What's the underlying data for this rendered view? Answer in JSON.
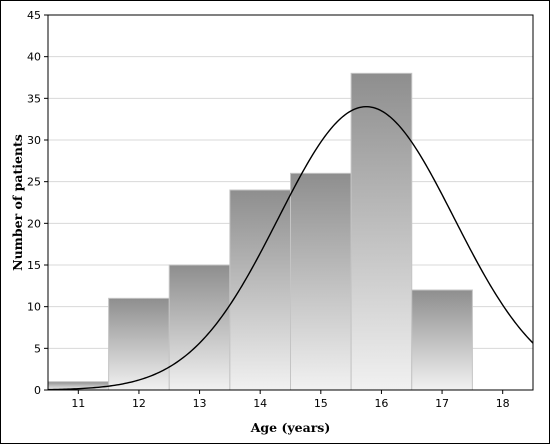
{
  "chart_data": {
    "type": "bar",
    "subtype": "histogram-with-normal-curve",
    "title": "",
    "xlabel": "Age (years)",
    "ylabel": "Number of patients",
    "xlim": [
      10.5,
      18.5
    ],
    "ylim": [
      0,
      45
    ],
    "xticks": [
      11,
      12,
      13,
      14,
      15,
      16,
      17,
      18
    ],
    "yticks": [
      0,
      5,
      10,
      15,
      20,
      25,
      30,
      35,
      40,
      45
    ],
    "grid": "horizontal",
    "bins": [
      {
        "start": 10.5,
        "end": 11.5,
        "value": 1
      },
      {
        "start": 11.5,
        "end": 12.5,
        "value": 11
      },
      {
        "start": 12.5,
        "end": 13.5,
        "value": 15
      },
      {
        "start": 13.5,
        "end": 14.5,
        "value": 24
      },
      {
        "start": 14.5,
        "end": 15.5,
        "value": 26
      },
      {
        "start": 15.5,
        "end": 16.5,
        "value": 38
      },
      {
        "start": 16.5,
        "end": 17.5,
        "value": 12
      }
    ],
    "normal_curve": {
      "mean": 15.75,
      "sd": 1.45,
      "peak": 34
    },
    "colors": {
      "bar_top": "#8e8e8e",
      "bar_bottom": "#f1f1f1",
      "curve": "#000000",
      "grid": "#d8d8d8"
    }
  }
}
